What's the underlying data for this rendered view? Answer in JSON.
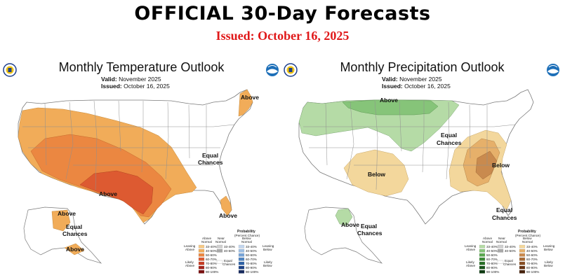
{
  "header": {
    "title": "OFFICIAL 30-Day Forecasts",
    "issued": "Issued: October 16, 2025"
  },
  "temperature_map": {
    "title": "Monthly Temperature Outlook",
    "valid_label": "Valid:",
    "valid_value": "November 2025",
    "issued_label": "Issued:",
    "issued_value": "October 16, 2025",
    "labels": {
      "above_ne": "Above",
      "above_sw": "Above",
      "equal_1": "Equal",
      "equal_2": "Chances",
      "above_fl": "Above",
      "above_ak_n": "Above",
      "ak_equal_1": "Equal",
      "ak_equal_2": "Chances",
      "above_ak_s": "Above"
    },
    "legend": {
      "title_1": "Probability",
      "title_2": "(Percent Chance)",
      "col_above_1": "Above",
      "col_above_2": "Normal",
      "col_near_1": "Near",
      "col_near_2": "Normal",
      "col_below_1": "Below",
      "col_below_2": "Normal",
      "leaning_above_1": "Leaning",
      "leaning_above_2": "Above",
      "likely_above_1": "Likely",
      "likely_above_2": "Above",
      "leaning_below_1": "Leaning",
      "leaning_below_2": "Below",
      "likely_below_1": "Likely",
      "likely_below_2": "Below",
      "equal_1": "Equal",
      "equal_2": "Chances",
      "ranges": [
        "33-40%",
        "40-50%",
        "50-60%",
        "60-70%",
        "70-80%",
        "80-90%",
        "90-100%"
      ],
      "near_ranges": [
        "33-40%",
        "40-50%"
      ]
    }
  },
  "precipitation_map": {
    "title": "Monthly Precipitation Outlook",
    "valid_label": "Valid:",
    "valid_value": "November 2025",
    "issued_label": "Issued:",
    "issued_value": "October 16, 2025",
    "labels": {
      "above_n": "Above",
      "equal_1": "Equal",
      "equal_2": "Chances",
      "below_sw": "Below",
      "below_se": "Below",
      "equal_fl_1": "Equal",
      "equal_fl_2": "Chances",
      "above_ak": "Above",
      "ak_equal_1": "Equal",
      "ak_equal_2": "Chances"
    },
    "legend": {
      "title_1": "Probability",
      "title_2": "(Percent Chance)",
      "col_above_1": "Above",
      "col_above_2": "Normal",
      "col_near_1": "Near",
      "col_near_2": "Normal",
      "col_below_1": "Below",
      "col_below_2": "Normal",
      "leaning_above_1": "Leaning",
      "leaning_above_2": "Above",
      "likely_above_1": "Likely",
      "likely_above_2": "Above",
      "leaning_below_1": "Leaning",
      "leaning_below_2": "Below",
      "likely_below_1": "Likely",
      "likely_below_2": "Below",
      "equal_1": "Equal",
      "equal_2": "Chances",
      "ranges": [
        "33-40%",
        "40-50%",
        "50-60%",
        "60-70%",
        "70-80%",
        "80-90%",
        "90-100%"
      ],
      "near_ranges": [
        "33-40%",
        "40-50%"
      ]
    }
  },
  "logos": {
    "left": "NOAA NWS",
    "right": "NOAA"
  }
}
